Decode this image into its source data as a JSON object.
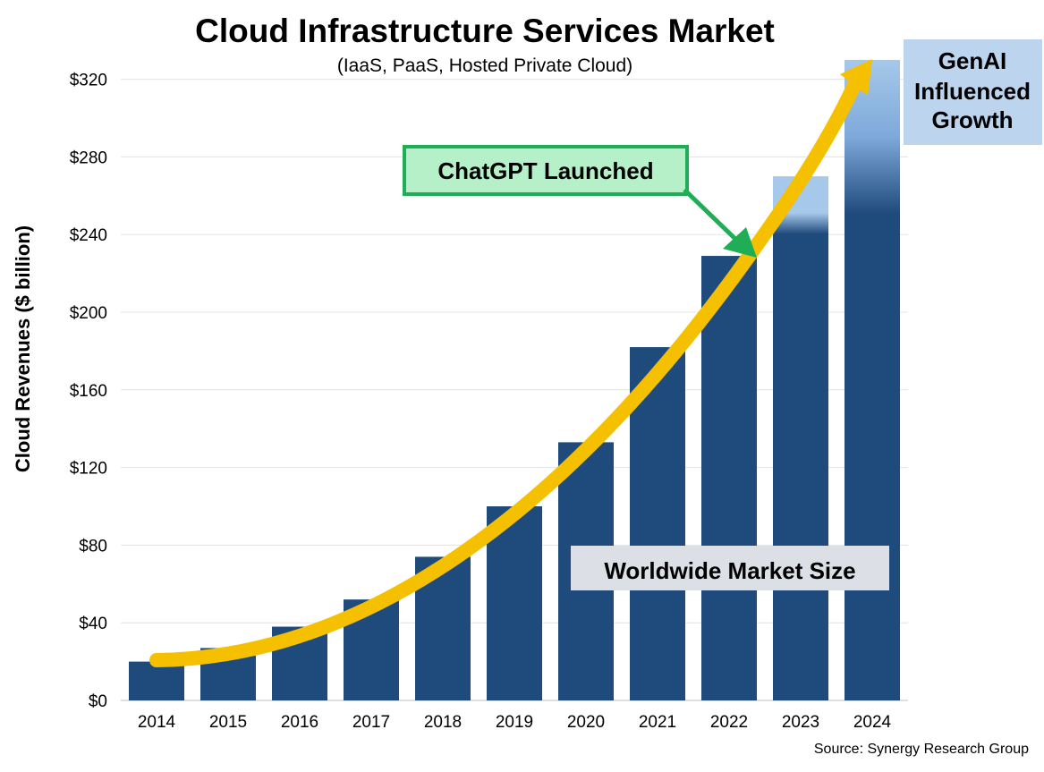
{
  "chart_data": {
    "type": "bar",
    "title": "Cloud Infrastructure Services Market",
    "subtitle": "(IaaS, PaaS, Hosted Private Cloud)",
    "ylabel": "Cloud Revenues ($ billion)",
    "xlabel": "",
    "categories": [
      "2014",
      "2015",
      "2016",
      "2017",
      "2018",
      "2019",
      "2020",
      "2021",
      "2022",
      "2023",
      "2024"
    ],
    "values": [
      20,
      27,
      38,
      52,
      74,
      100,
      133,
      182,
      229,
      270,
      330
    ],
    "ylim": [
      0,
      330
    ],
    "yticks": [
      0,
      40,
      80,
      120,
      160,
      200,
      240,
      280,
      320
    ],
    "ytick_labels": [
      "$0",
      "$40",
      "$80",
      "$120",
      "$160",
      "$200",
      "$240",
      "$280",
      "$320"
    ],
    "grid": true,
    "bar_color": "#1f4a7c",
    "highlight_color": "#a6c8ea",
    "trend_color": "#f5c000",
    "annotations": {
      "chatgpt": "ChatGPT Launched",
      "genai_lines": [
        "GenAI",
        "Influenced",
        "Growth"
      ],
      "market": "Worldwide Market Size"
    },
    "source": "Source: Synergy Research Group"
  }
}
